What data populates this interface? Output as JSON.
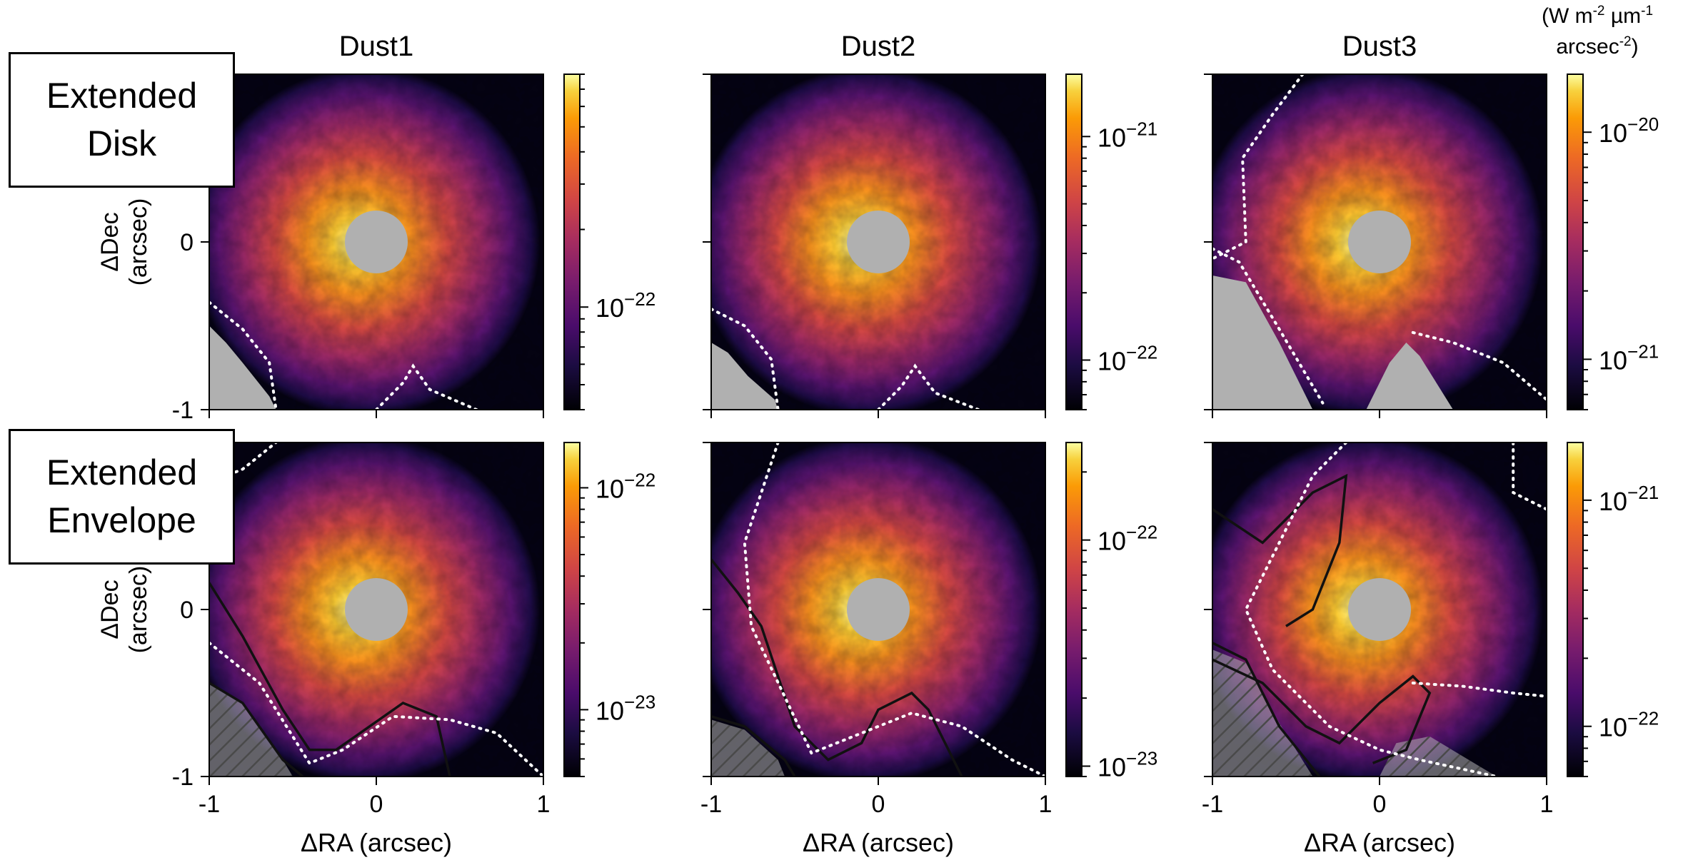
{
  "colorbar_unit": {
    "line1": "(W m",
    "sup1": "-2",
    "mid": " µm",
    "sup2": "-1",
    "line2": "arcsec",
    "sup3": "-2",
    "close": ")"
  },
  "rows": [
    {
      "label_lines": [
        "Extended",
        "Disk"
      ]
    },
    {
      "label_lines": [
        "Extended",
        "Envelope"
      ]
    }
  ],
  "columns": [
    "Dust1",
    "Dust2",
    "Dust3"
  ],
  "colormap": "inferno",
  "mask_color": "#b0b0b0",
  "chart_data": [
    {
      "type": "heatmap",
      "row": "Extended Disk",
      "title": "Dust1",
      "ylabel": "ΔDec (arcsec)",
      "xlabel": "",
      "xlim": [
        -1,
        1
      ],
      "ylim": [
        -1,
        1
      ],
      "yticks": [
        "0",
        "-1"
      ],
      "xticks": [],
      "colorbar": {
        "scale": "log",
        "range": [
          4e-23,
          8e-22
        ],
        "labels": [
          {
            "base": "10",
            "exp": "−22",
            "value": 1e-22
          }
        ]
      }
    },
    {
      "type": "heatmap",
      "row": "Extended Disk",
      "title": "Dust2",
      "ylabel": "",
      "xlabel": "",
      "xlim": [
        -1,
        1
      ],
      "ylim": [
        -1,
        1
      ],
      "yticks": [],
      "xticks": [],
      "colorbar": {
        "scale": "log",
        "range": [
          6e-23,
          1.9e-21
        ],
        "labels": [
          {
            "base": "10",
            "exp": "−21",
            "value": 1e-21
          },
          {
            "base": "10",
            "exp": "−22",
            "value": 1e-22
          }
        ]
      }
    },
    {
      "type": "heatmap",
      "row": "Extended Disk",
      "title": "Dust3",
      "ylabel": "",
      "xlabel": "",
      "xlim": [
        -1,
        1
      ],
      "ylim": [
        -1,
        1
      ],
      "yticks": [],
      "xticks": [],
      "colorbar": {
        "scale": "log",
        "range": [
          6e-22,
          1.8e-20
        ],
        "labels": [
          {
            "base": "10",
            "exp": "−20",
            "value": 1e-20
          },
          {
            "base": "10",
            "exp": "−21",
            "value": 1e-21
          }
        ]
      }
    },
    {
      "type": "heatmap",
      "row": "Extended Envelope",
      "title": "",
      "ylabel": "ΔDec (arcsec)",
      "xlabel": "ΔRA (arcsec)",
      "xlim": [
        -1,
        1
      ],
      "ylim": [
        -1,
        1
      ],
      "yticks": [
        "0",
        "-1"
      ],
      "xticks": [
        "-1",
        "0",
        "1"
      ],
      "colorbar": {
        "scale": "log",
        "range": [
          5e-24,
          1.6e-22
        ],
        "labels": [
          {
            "base": "10",
            "exp": "−22",
            "value": 1e-22
          },
          {
            "base": "10",
            "exp": "−23",
            "value": 1e-23
          }
        ]
      }
    },
    {
      "type": "heatmap",
      "row": "Extended Envelope",
      "title": "",
      "ylabel": "",
      "xlabel": "ΔRA (arcsec)",
      "xlim": [
        -1,
        1
      ],
      "ylim": [
        -1,
        1
      ],
      "yticks": [],
      "xticks": [
        "-1",
        "0",
        "1"
      ],
      "colorbar": {
        "scale": "log",
        "range": [
          9e-24,
          2.7e-22
        ],
        "labels": [
          {
            "base": "10",
            "exp": "−22",
            "value": 1e-22
          },
          {
            "base": "10",
            "exp": "−23",
            "value": 1e-23
          }
        ]
      }
    },
    {
      "type": "heatmap",
      "row": "Extended Envelope",
      "title": "",
      "ylabel": "",
      "xlabel": "ΔRA (arcsec)",
      "xlim": [
        -1,
        1
      ],
      "ylim": [
        -1,
        1
      ],
      "yticks": [],
      "xticks": [
        "-1",
        "0",
        "1"
      ],
      "colorbar": {
        "scale": "log",
        "range": [
          6e-23,
          1.8e-21
        ],
        "labels": [
          {
            "base": "10",
            "exp": "−21",
            "value": 1e-21
          },
          {
            "base": "10",
            "exp": "−22",
            "value": 1e-22
          }
        ]
      }
    }
  ]
}
